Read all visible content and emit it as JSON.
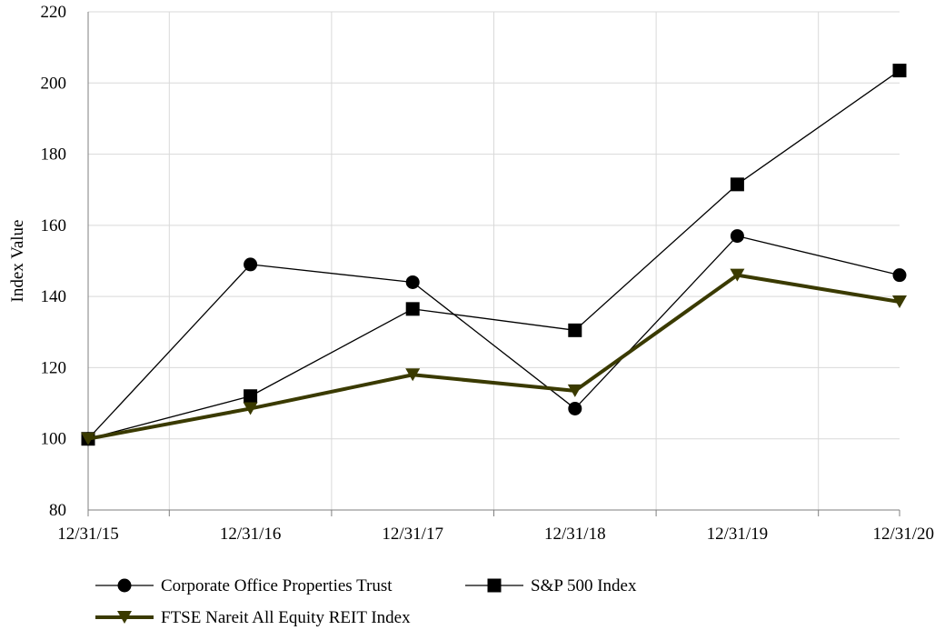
{
  "chart_data": {
    "type": "line",
    "ylabel": "Index Value",
    "ylim": [
      80,
      220
    ],
    "yticks": [
      80,
      100,
      120,
      140,
      160,
      180,
      200,
      220
    ],
    "categories": [
      "12/31/15",
      "12/31/16",
      "12/31/17",
      "12/31/18",
      "12/31/19",
      "12/31/20"
    ],
    "grid": true,
    "legend_position": "bottom",
    "series": [
      {
        "name": "Corporate Office Properties Trust",
        "values": [
          100,
          149,
          144,
          108.5,
          157,
          146
        ],
        "marker": "circle",
        "color": "#000000",
        "width": "thin"
      },
      {
        "name": "S&P 500 Index",
        "values": [
          100,
          112,
          136.5,
          130.5,
          171.5,
          203.5
        ],
        "marker": "square",
        "color": "#000000",
        "width": "thin"
      },
      {
        "name": "FTSE Nareit All Equity REIT Index",
        "values": [
          100,
          108.5,
          118,
          113.5,
          146,
          138.5
        ],
        "marker": "triangle-down",
        "color": "#3a3a00",
        "width": "thick"
      }
    ]
  }
}
